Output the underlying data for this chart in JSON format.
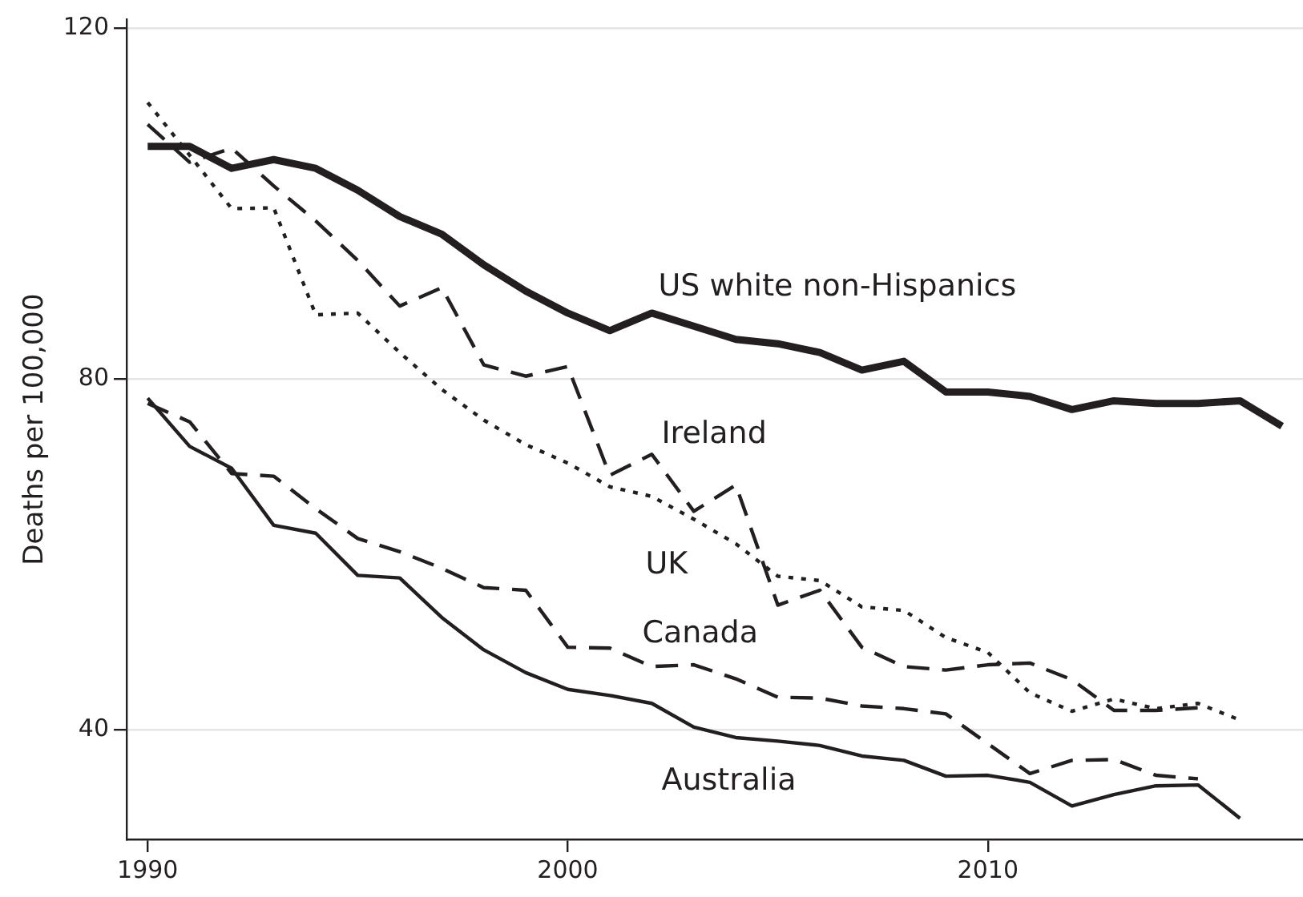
{
  "chart_data": {
    "type": "line",
    "ylabel": "Deaths per 100,000",
    "x": [
      1990,
      1991,
      1992,
      1993,
      1994,
      1995,
      1996,
      1997,
      1998,
      1999,
      2000,
      2001,
      2002,
      2003,
      2004,
      2005,
      2006,
      2007,
      2008,
      2009,
      2010,
      2011,
      2012,
      2013,
      2014,
      2015,
      2016,
      2017
    ],
    "series": [
      {
        "name": "US white non-Hispanics",
        "color": "#231f20",
        "line_style": "solid",
        "values": [
          106.5,
          106.5,
          104,
          105,
          104,
          101.5,
          98.5,
          96.5,
          93,
          90,
          87.5,
          85.5,
          87.5,
          86,
          84.5,
          84,
          83,
          81,
          82,
          78.5,
          78.5,
          78,
          76.5,
          77.5,
          77.2,
          77.2,
          77.5,
          74.6
        ]
      },
      {
        "name": "Ireland",
        "color": "#231f20",
        "line_style": "dashed",
        "values": [
          109,
          104.7,
          106.3,
          102,
          98,
          93.5,
          88.3,
          90.4,
          81.6,
          80.3,
          81.4,
          69,
          71.4,
          64.9,
          67.9,
          54.2,
          55.9,
          49.4,
          47.2,
          46.8,
          47.4,
          47.6,
          45.7,
          42.2,
          42.2,
          42.5,
          null,
          null
        ]
      },
      {
        "name": "UK",
        "color": "#231f20",
        "line_style": "dotted",
        "values": [
          111.5,
          105.5,
          99.4,
          99.5,
          87.3,
          87.5,
          83,
          78.8,
          75.3,
          72.5,
          70.4,
          67.7,
          66.6,
          64,
          61.2,
          57.5,
          57,
          54,
          53.6,
          50.5,
          48.8,
          44.2,
          42.1,
          43.5,
          42.4,
          43,
          41.1,
          null
        ]
      },
      {
        "name": "Canada",
        "color": "#231f20",
        "line_style": "dashed",
        "values": [
          77.2,
          75.1,
          69.2,
          68.9,
          65.2,
          61.8,
          60.3,
          58.4,
          56.2,
          55.9,
          49.4,
          49.3,
          47.2,
          47.4,
          45.8,
          43.7,
          43.6,
          42.7,
          42.4,
          41.8,
          38.4,
          35,
          36.5,
          36.6,
          34.8,
          34.4,
          null,
          null
        ]
      },
      {
        "name": "Australia",
        "color": "#231f20",
        "line_style": "solid",
        "values": [
          77.8,
          72.3,
          69.8,
          63.3,
          62.4,
          57.6,
          57.3,
          52.8,
          49.1,
          46.5,
          44.6,
          43.9,
          43,
          40.3,
          39.1,
          38.7,
          38.2,
          37,
          36.5,
          34.7,
          34.8,
          34,
          31.3,
          32.6,
          33.6,
          33.7,
          29.9,
          null
        ]
      }
    ],
    "xlim": [
      1989.5,
      2017.5
    ],
    "xticks": [
      1990,
      2000,
      2010
    ],
    "ylim": [
      27.5,
      121
    ],
    "yticks": [
      40,
      80,
      120
    ],
    "grid": "y",
    "legend": false,
    "marker": "none"
  }
}
